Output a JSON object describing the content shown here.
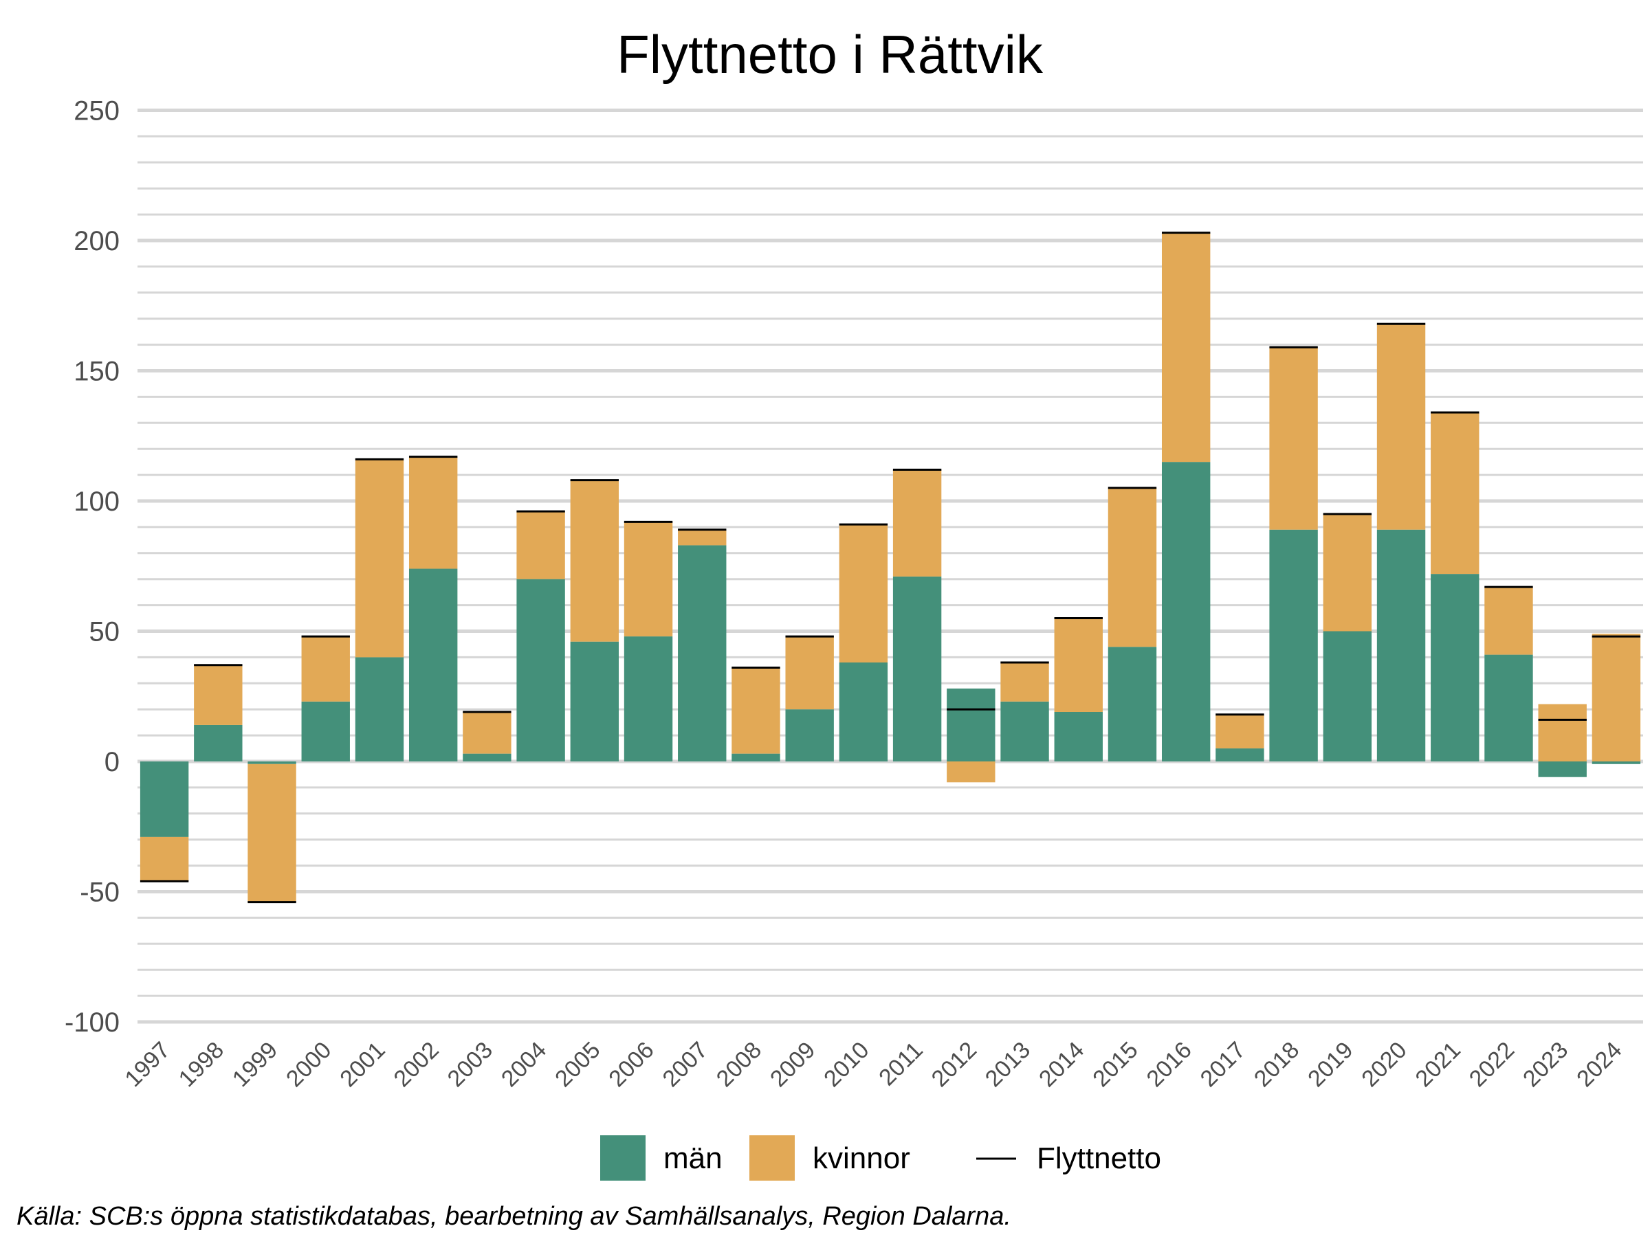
{
  "chart_data": {
    "type": "bar",
    "stacked": true,
    "title": "Flyttnetto i Rättvik",
    "caption": "Källa: SCB:s öppna statistikdatabas, bearbetning av Samhällsanalys, Region Dalarna.",
    "xlabel": "",
    "ylabel": "",
    "ylim": [
      -100,
      250
    ],
    "yticks": [
      -100,
      -50,
      0,
      50,
      100,
      150,
      200,
      250
    ],
    "grid": true,
    "legend_position": "bottom",
    "categories": [
      "1997",
      "1998",
      "1999",
      "2000",
      "2001",
      "2002",
      "2003",
      "2004",
      "2005",
      "2006",
      "2007",
      "2008",
      "2009",
      "2010",
      "2011",
      "2012",
      "2013",
      "2014",
      "2015",
      "2016",
      "2017",
      "2018",
      "2019",
      "2020",
      "2021",
      "2022",
      "2023",
      "2024"
    ],
    "series": [
      {
        "name": "män",
        "color": "#44907a",
        "values": [
          -29,
          14,
          -1,
          23,
          40,
          74,
          3,
          70,
          46,
          48,
          83,
          3,
          20,
          38,
          71,
          28,
          23,
          19,
          44,
          115,
          5,
          89,
          50,
          89,
          72,
          41,
          -6,
          -1
        ]
      },
      {
        "name": "kvinnor",
        "color": "#e2a956",
        "values": [
          -17,
          23,
          -53,
          25,
          76,
          43,
          16,
          26,
          62,
          44,
          6,
          33,
          28,
          53,
          41,
          -8,
          15,
          36,
          61,
          88,
          13,
          70,
          45,
          79,
          62,
          26,
          22,
          49
        ]
      }
    ],
    "line_series": {
      "name": "Flyttnetto",
      "color": "#000000",
      "values": [
        -46,
        37,
        -54,
        48,
        116,
        117,
        19,
        96,
        108,
        92,
        89,
        36,
        48,
        91,
        112,
        20,
        38,
        55,
        105,
        203,
        18,
        159,
        95,
        168,
        134,
        67,
        16,
        48
      ]
    }
  }
}
